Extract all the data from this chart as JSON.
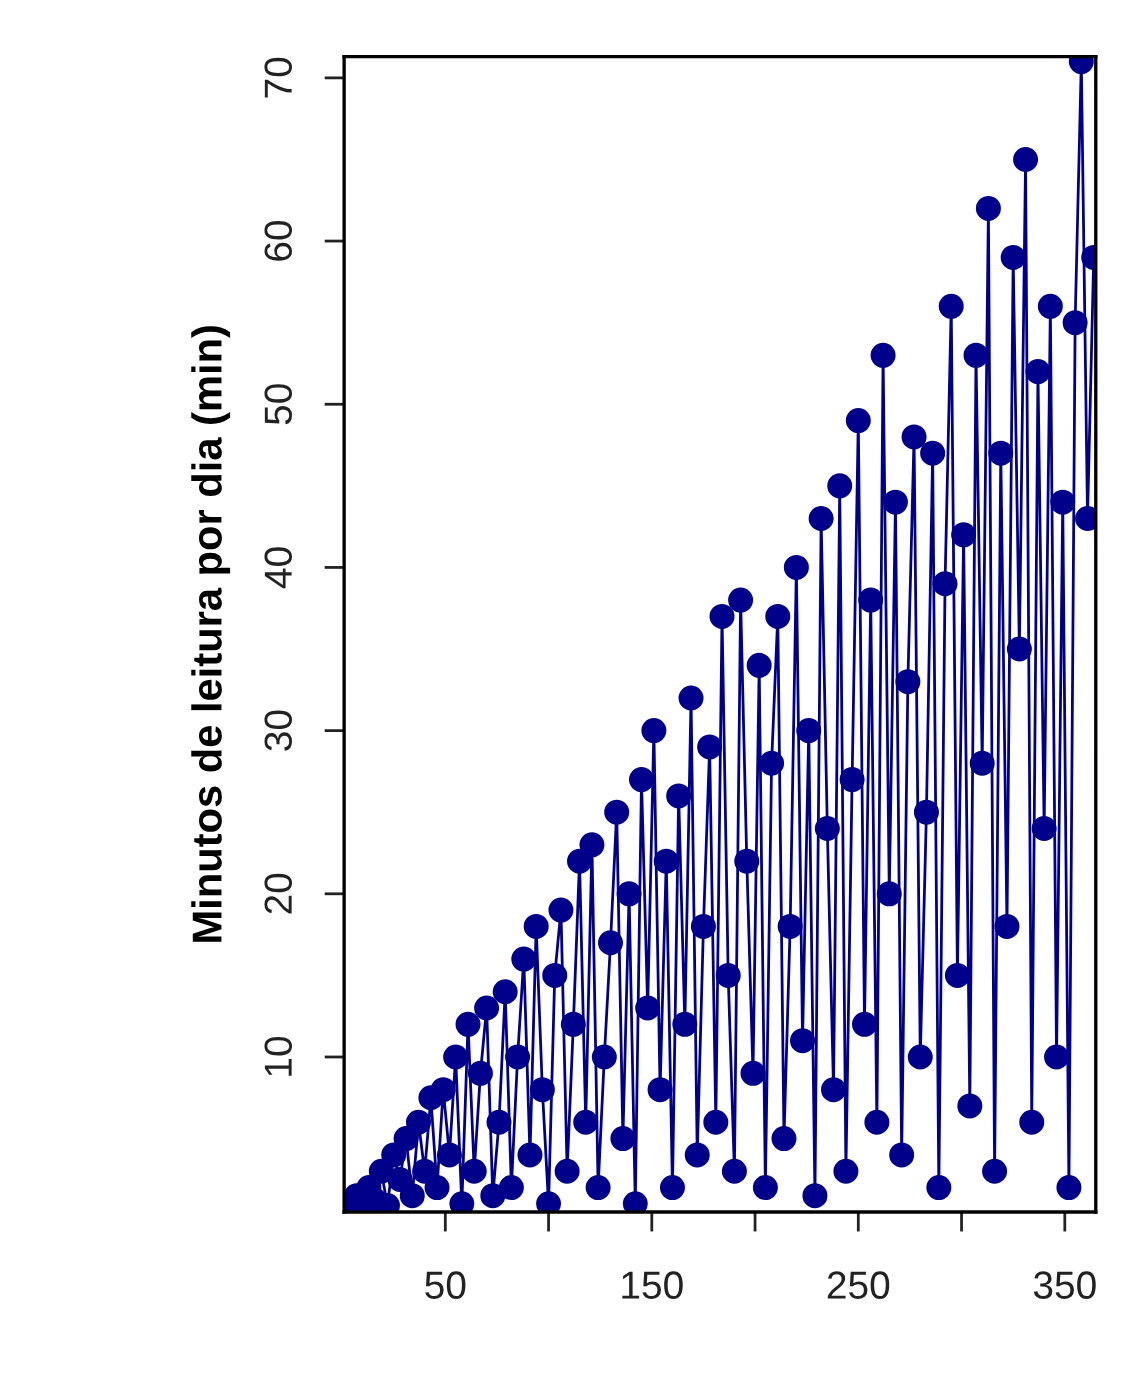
{
  "chart_data": {
    "type": "line",
    "ylabel": "Minutos de leitura por dia (min)",
    "x": [
      1,
      4,
      7,
      10,
      13,
      16,
      19,
      22,
      25,
      28,
      31,
      34,
      37,
      40,
      43,
      46,
      49,
      52,
      55,
      58,
      61,
      64,
      67,
      70,
      73,
      76,
      79,
      82,
      85,
      88,
      91,
      94,
      97,
      100,
      103,
      106,
      109,
      112,
      115,
      118,
      121,
      124,
      127,
      130,
      133,
      136,
      139,
      142,
      145,
      148,
      151,
      154,
      157,
      160,
      163,
      166,
      169,
      172,
      175,
      178,
      181,
      184,
      187,
      190,
      193,
      196,
      199,
      202,
      205,
      208,
      211,
      214,
      217,
      220,
      223,
      226,
      229,
      232,
      235,
      238,
      241,
      244,
      247,
      250,
      253,
      256,
      259,
      262,
      265,
      268,
      271,
      274,
      277,
      280,
      283,
      286,
      289,
      292,
      295,
      298,
      301,
      304,
      307,
      310,
      313,
      316,
      319,
      322,
      325,
      328,
      331,
      334,
      337,
      340,
      343,
      346,
      349,
      352,
      355,
      358,
      361,
      364
    ],
    "series": [
      {
        "color": "#00008b",
        "values": [
          0.5,
          1,
          1.5,
          0.8,
          2,
          1.2,
          3,
          0.9,
          4,
          2.5,
          5,
          1.5,
          6,
          3,
          7.5,
          2,
          8,
          4,
          10,
          1,
          12,
          3,
          9,
          13,
          1.5,
          6,
          14,
          2,
          10,
          16,
          4,
          18,
          8,
          1,
          15,
          19,
          3,
          12,
          22,
          6,
          23,
          2,
          10,
          17,
          25,
          5,
          20,
          1,
          27,
          13,
          30,
          8,
          22,
          2,
          26,
          12,
          32,
          4,
          18,
          29,
          6,
          37,
          15,
          3,
          38,
          22,
          9,
          34,
          2,
          28,
          37,
          5,
          18,
          40,
          11,
          30,
          1.5,
          43,
          24,
          8,
          45,
          3,
          27,
          49,
          12,
          38,
          6,
          53,
          20,
          44,
          4,
          33,
          48,
          10,
          25,
          47,
          2,
          39,
          56,
          15,
          42,
          7,
          53,
          28,
          62,
          3,
          47,
          18,
          59,
          35,
          65,
          6,
          52,
          24,
          56,
          10,
          44,
          2,
          55,
          71,
          43,
          59
        ]
      }
    ],
    "xlim": [
      1,
      365
    ],
    "ylim": [
      0.5,
      71.3
    ],
    "xticks": [
      50,
      {
        "value": 100,
        "label": null
      },
      150,
      {
        "value": 200,
        "label": null
      },
      250,
      {
        "value": 300,
        "label": null
      },
      350
    ],
    "yticks": [
      10,
      20,
      30,
      40,
      50,
      60,
      70
    ],
    "marker": "circle",
    "line_style": "solid",
    "grid": false,
    "legend": false
  }
}
